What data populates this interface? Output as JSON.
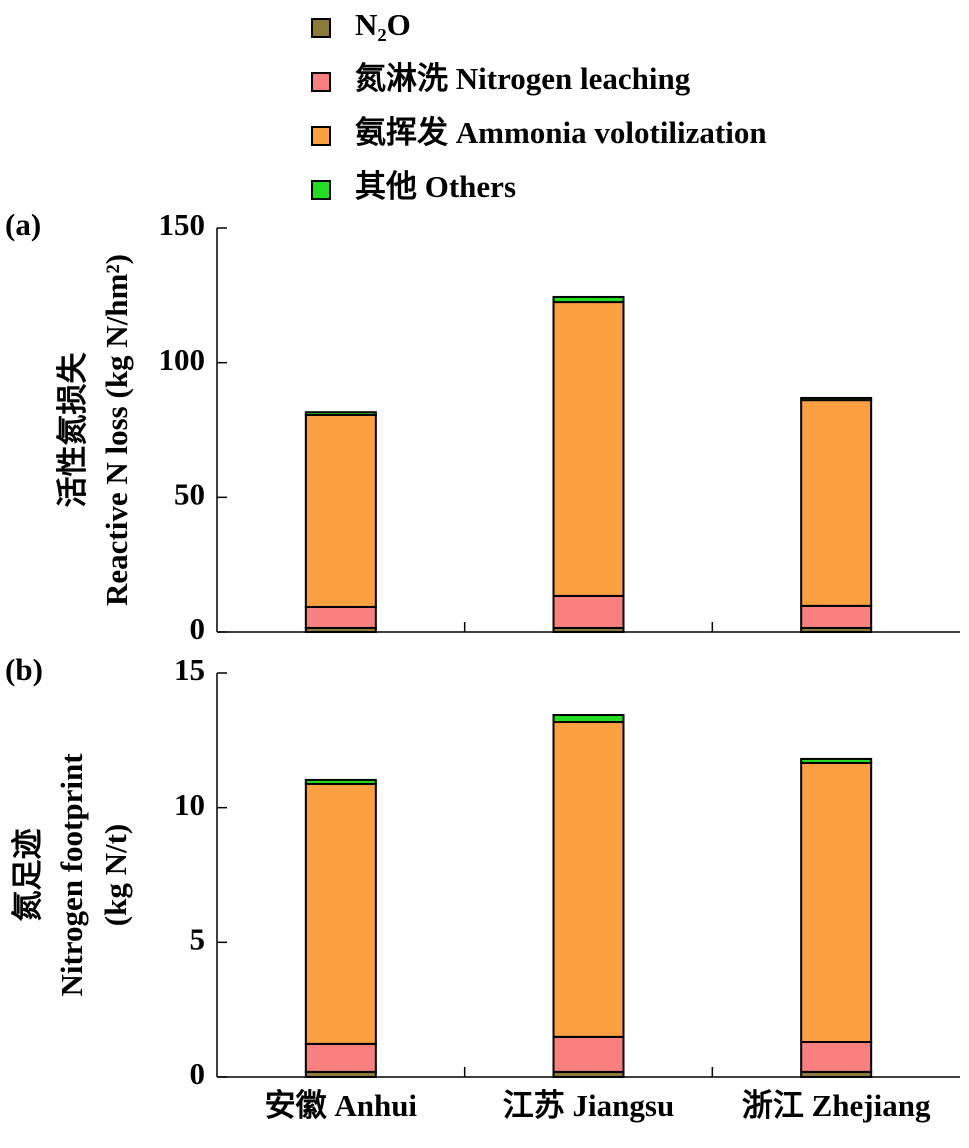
{
  "chart_data": [
    {
      "type": "bar",
      "stacked": true,
      "panel_label": "(a)",
      "ylabel": [
        "活性氮损失",
        "Reactive N loss (kg N/hm²)"
      ],
      "ylim": [
        0,
        150
      ],
      "yticks": [
        0,
        50,
        100,
        150
      ],
      "series": [
        {
          "name": "N₂O",
          "color": "#8b7a3a",
          "values": [
            1.5,
            1.5,
            1.5
          ]
        },
        {
          "name": "氮淋洗 Nitrogen leaching",
          "color": "#fa8080",
          "values": [
            7.8,
            11.9,
            8.2
          ]
        },
        {
          "name": "氨挥发 Ammonia volotilization",
          "color": "#fba040",
          "values": [
            71.3,
            109.1,
            76.4
          ]
        },
        {
          "name": "其他 Others",
          "color": "#22dd22",
          "values": [
            1.0,
            1.9,
            0.8
          ]
        }
      ]
    },
    {
      "type": "bar",
      "stacked": true,
      "panel_label": "(b)",
      "ylabel": [
        "氮足迹",
        "Nitrogen footprint",
        "(kg N/t)"
      ],
      "categories": [
        "安徽 Anhui",
        "江苏 Jiangsu",
        "浙江 Zhejiang"
      ],
      "ylim": [
        0,
        15
      ],
      "yticks": [
        0,
        5,
        10,
        15
      ],
      "series": [
        {
          "color": "#8b7a3a",
          "values": [
            0.19,
            0.19,
            0.19
          ]
        },
        {
          "color": "#fa8080",
          "values": [
            1.04,
            1.3,
            1.11
          ]
        },
        {
          "color": "#fba040",
          "values": [
            9.65,
            11.69,
            10.36
          ]
        },
        {
          "color": "#22dd22",
          "values": [
            0.15,
            0.26,
            0.15
          ]
        }
      ]
    }
  ]
}
